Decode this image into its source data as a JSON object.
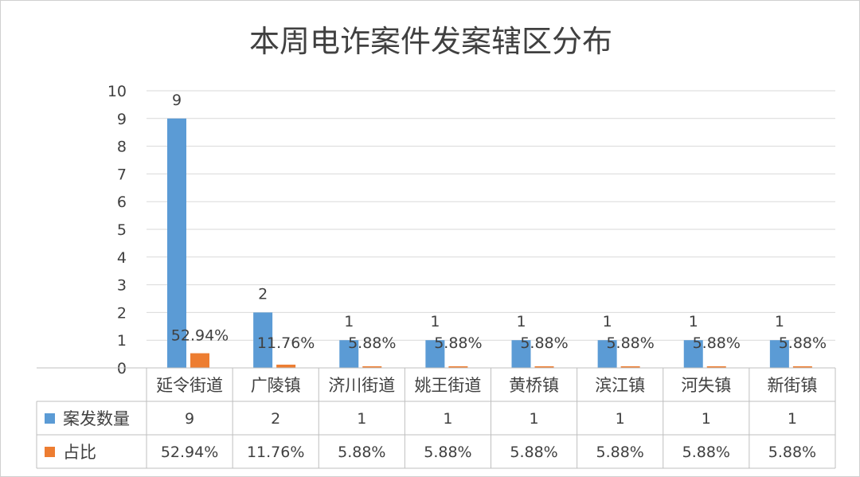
{
  "chart_data": {
    "type": "bar",
    "title": "本周电诈案件发案辖区分布",
    "categories": [
      "延令街道",
      "广陵镇",
      "济川街道",
      "姚王街道",
      "黄桥镇",
      "滨江镇",
      "河失镇",
      "新街镇"
    ],
    "series": [
      {
        "name": "案发数量",
        "values": [
          9,
          2,
          1,
          1,
          1,
          1,
          1,
          1
        ],
        "labels": [
          "9",
          "2",
          "1",
          "1",
          "1",
          "1",
          "1",
          "1"
        ],
        "color": "#5b9bd5"
      },
      {
        "name": "占比",
        "values": [
          0.5294,
          0.1176,
          0.0588,
          0.0588,
          0.0588,
          0.0588,
          0.0588,
          0.0588
        ],
        "labels": [
          "52.94%",
          "11.76%",
          "5.88%",
          "5.88%",
          "5.88%",
          "5.88%",
          "5.88%",
          "5.88%"
        ],
        "color": "#ed7d31"
      }
    ],
    "ylim": [
      0,
      10
    ],
    "yticks": [
      "0",
      "1",
      "2",
      "3",
      "4",
      "5",
      "6",
      "7",
      "8",
      "9",
      "10"
    ],
    "grid": true,
    "legend": "data-table",
    "gridline_color": "#d9d9d9",
    "border_color": "#bfbfbf"
  }
}
